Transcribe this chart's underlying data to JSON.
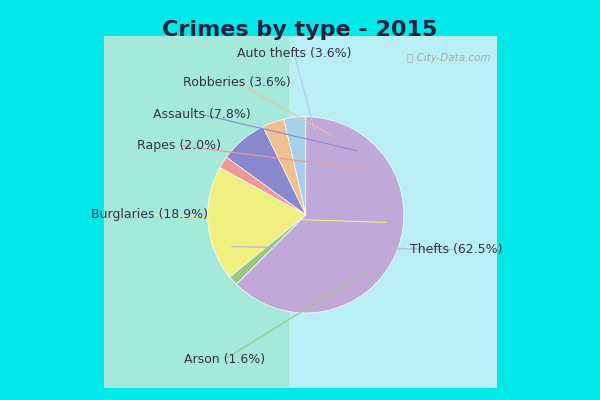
{
  "title": "Crimes by type - 2015",
  "labels": [
    "Auto thefts (3.6%)",
    "Robberies (3.6%)",
    "Assaults (7.8%)",
    "Rapes (2.0%)",
    "Burglaries (18.9%)",
    "Arson (1.6%)",
    "Thefts (62.5%)"
  ],
  "values": [
    3.6,
    3.6,
    7.8,
    2.0,
    18.9,
    1.6,
    62.5
  ],
  "colors": [
    "#a8d0e8",
    "#f0c090",
    "#8888cc",
    "#f09898",
    "#f0f080",
    "#98c880",
    "#c0a8d8"
  ],
  "background_outer": "#00e8e8",
  "background_inner_color1": "#d0ead8",
  "background_inner_color2": "#e8f0f8",
  "startangle": 90,
  "title_fontsize": 16,
  "label_fontsize": 9,
  "title_color": "#222244",
  "label_color": "#333344"
}
